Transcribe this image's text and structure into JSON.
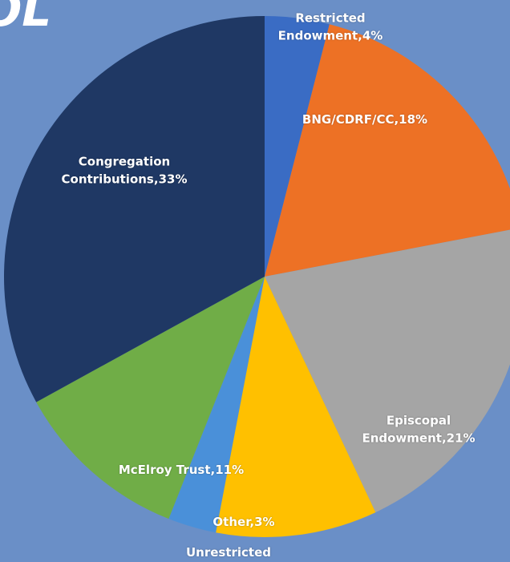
{
  "heading": "OL",
  "chart_data": {
    "type": "pie",
    "categories": [
      "Restricted\nEndowment",
      "BNG/CDRF/CC",
      "Episcopal\nEndowment",
      "Unrestricted",
      "Other",
      "McElroy Trust",
      "Congregation\nContributions"
    ],
    "values": [
      4,
      18,
      21,
      10,
      3,
      11,
      33
    ],
    "value_labels": [
      "4%",
      "18%",
      "21%",
      null,
      "3%",
      "11%",
      "33%"
    ],
    "label_separator": ",",
    "colors": [
      "#3a6cc4",
      "#ed7125",
      "#a5a5a5",
      "#ffc000",
      "#4a90d9",
      "#70ad47",
      "#1f3864"
    ]
  }
}
